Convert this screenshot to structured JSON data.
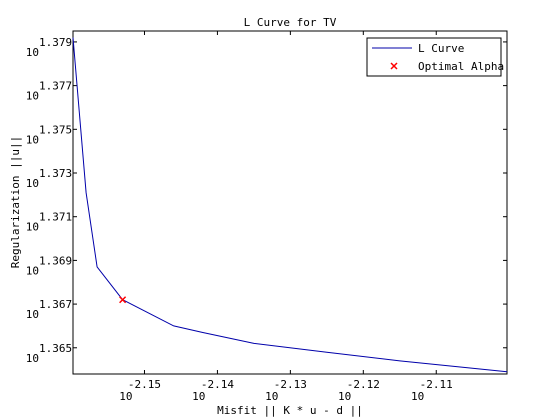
{
  "chart_data": {
    "type": "line",
    "title": "L Curve for TV",
    "xlabel": "Misfit || K * u - d ||",
    "ylabel": "Regularization ||u||",
    "xscale": "log",
    "yscale": "log",
    "grid": false,
    "legend_position": "top-right",
    "x_exp_range": [
      -2.1598,
      -2.1003
    ],
    "y_exp_range": [
      1.3638,
      1.3795
    ],
    "x_ticks": [
      {
        "value": -2.15,
        "base": "10",
        "exp": "-2.15"
      },
      {
        "value": -2.14,
        "base": "10",
        "exp": "-2.14"
      },
      {
        "value": -2.13,
        "base": "10",
        "exp": "-2.13"
      },
      {
        "value": -2.12,
        "base": "10",
        "exp": "-2.12"
      },
      {
        "value": -2.11,
        "base": "10",
        "exp": "-2.11"
      }
    ],
    "y_ticks": [
      {
        "value": 1.365,
        "base": "10",
        "exp": "1.365"
      },
      {
        "value": 1.367,
        "base": "10",
        "exp": "1.367"
      },
      {
        "value": 1.369,
        "base": "10",
        "exp": "1.369"
      },
      {
        "value": 1.371,
        "base": "10",
        "exp": "1.371"
      },
      {
        "value": 1.373,
        "base": "10",
        "exp": "1.373"
      },
      {
        "value": 1.375,
        "base": "10",
        "exp": "1.375"
      },
      {
        "value": 1.377,
        "base": "10",
        "exp": "1.377"
      },
      {
        "value": 1.379,
        "base": "10",
        "exp": "1.379"
      }
    ],
    "series": [
      {
        "name": "L Curve",
        "color": "#0000aa",
        "x_exp": [
          -2.1598,
          -2.158,
          -2.1565,
          -2.153,
          -2.146,
          -2.142,
          -2.135,
          -2.125,
          -2.115,
          -2.1003
        ],
        "y_exp": [
          1.3792,
          1.3721,
          1.3687,
          1.3672,
          1.366,
          1.3657,
          1.3652,
          1.3648,
          1.3644,
          1.3639
        ]
      }
    ],
    "optimal": {
      "name": "Optimal Alpha",
      "color": "#ff0000",
      "marker": "x",
      "x_exp": -2.153,
      "y_exp": 1.3672
    }
  }
}
